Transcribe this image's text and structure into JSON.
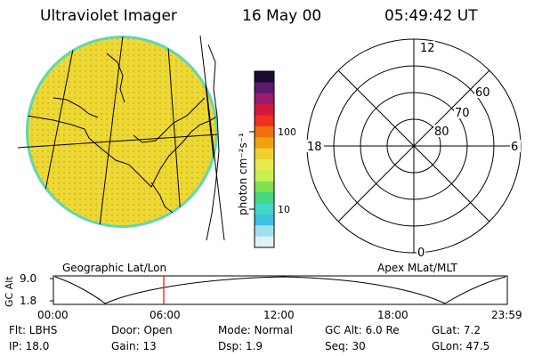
{
  "header": {
    "instrument": "Ultraviolet Imager",
    "date": "16 May 00",
    "time": "05:49:42 UT"
  },
  "colorbar": {
    "unit_label": "photon cm⁻²s⁻¹",
    "ticks": [
      "100",
      "10"
    ],
    "colors": [
      "#1a0a2e",
      "#5a1a6e",
      "#9a1a6e",
      "#d01a3a",
      "#f03020",
      "#f07010",
      "#f0a010",
      "#f0d030",
      "#e8e850",
      "#c8f050",
      "#80e050",
      "#40d880",
      "#40d8c8",
      "#40c0e0",
      "#a0e0f0",
      "#e0f0f8"
    ]
  },
  "image_panel": {
    "colors": {
      "fill": "#f0d830",
      "edge": "#60d8b0",
      "mid": "#d8e040"
    }
  },
  "polar_plot": {
    "labels": {
      "top": "12",
      "left": "18",
      "right": "6",
      "bottom": "0"
    },
    "circle_labels": [
      "60",
      "70",
      "80"
    ]
  },
  "orbit_panel": {
    "ylabel": "GC Alt",
    "y_ticks": [
      "9.0",
      "1.8"
    ],
    "left_title": "Geographic Lat/Lon",
    "right_title": "Apex MLat/MLT",
    "x_ticks": [
      "00:00",
      "06:00",
      "12:00",
      "18:00",
      "23:59"
    ],
    "marker_color": "#ff0000"
  },
  "status": {
    "flt": "Flt: LBHS",
    "ip": "IP: 18.0",
    "door": "Door: Open",
    "gain": "Gain: 13",
    "mode": "Mode: Normal",
    "dsp": "Dsp:    1.9",
    "gc_alt": "GC Alt: 6.0 Re",
    "seq": "Seq: 30",
    "glat": "GLat:   7.2",
    "glon": "GLon:  47.5"
  }
}
